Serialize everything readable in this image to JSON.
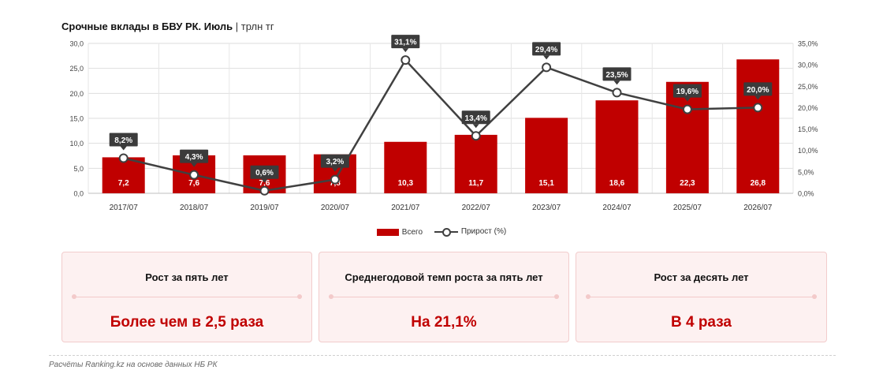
{
  "header": {
    "title": "Срочные вклады в БВУ РК. Июль",
    "unit": "| трлн тг"
  },
  "chart_data": {
    "type": "bar",
    "categories": [
      "2017/07",
      "2018/07",
      "2019/07",
      "2020/07",
      "2021/07",
      "2022/07",
      "2023/07",
      "2024/07",
      "2025/07",
      "2026/07"
    ],
    "series": [
      {
        "name": "Всего",
        "type": "bar",
        "axis": "left",
        "color": "#c00000",
        "values": [
          7.2,
          7.6,
          7.6,
          7.8,
          10.3,
          11.7,
          15.1,
          18.6,
          22.3,
          26.8
        ],
        "labels": [
          "7,2",
          "7,6",
          "7,6",
          "7,8",
          "10,3",
          "11,7",
          "15,1",
          "18,6",
          "22,3",
          "26,8"
        ]
      },
      {
        "name": "Прирост (%)",
        "type": "line",
        "axis": "right",
        "color": "#404040",
        "values": [
          8.2,
          4.3,
          0.6,
          3.2,
          31.1,
          13.4,
          29.4,
          23.5,
          19.6,
          20.0
        ],
        "labels": [
          "8,2%",
          "4,3%",
          "0,6%",
          "3,2%",
          "31,1%",
          "13,4%",
          "29,4%",
          "23,5%",
          "19,6%",
          "20,0%"
        ]
      }
    ],
    "y_left": {
      "range": [
        0,
        30
      ],
      "ticks": [
        "0,0",
        "5,0",
        "10,0",
        "15,0",
        "20,0",
        "25,0",
        "30,0"
      ]
    },
    "y_right": {
      "range": [
        0,
        35
      ],
      "ticks": [
        "0,0%",
        "5,0%",
        "10,0%",
        "15,0%",
        "20,0%",
        "25,0%",
        "30,0%",
        "35,0%"
      ]
    },
    "grid": true,
    "legend": "bottom"
  },
  "legend": {
    "bar_label": "Всего",
    "line_label": "Прирост (%)"
  },
  "cards": [
    {
      "title": "Рост за пять лет",
      "value": "Более чем в 2,5 раза"
    },
    {
      "title": "Среднегодовой темп роста за пять лет",
      "value": "На 21,1%"
    },
    {
      "title": "Рост за десять лет",
      "value": "В 4 раза"
    }
  ],
  "footer": {
    "source": "Расчёты Ranking.kz на основе данных НБ РК"
  }
}
